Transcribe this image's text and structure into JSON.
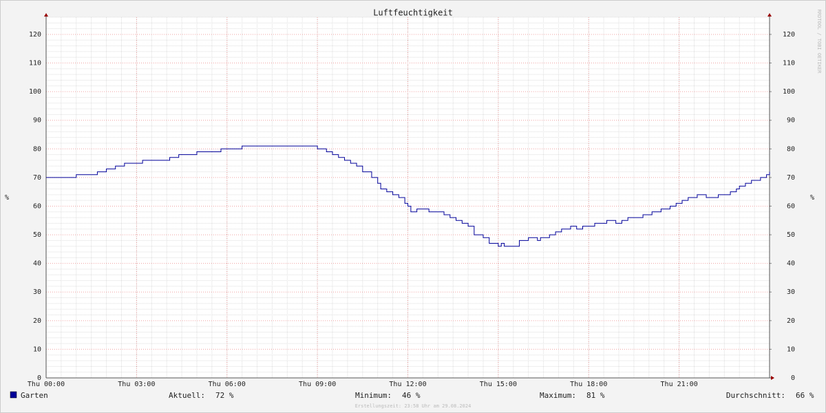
{
  "chart_data": {
    "type": "line",
    "title": "Luftfeuchtigkeit",
    "ylabel": "%",
    "y2label": "%",
    "watermark": "RRDTOOL / TOBI OETIKER",
    "footer": "Erstellungszeit: 23:58 Uhr am 29.08.2024",
    "xlim": [
      0,
      24
    ],
    "xticks": [
      {
        "value": 0,
        "label": "Thu 00:00"
      },
      {
        "value": 3,
        "label": "Thu 03:00"
      },
      {
        "value": 6,
        "label": "Thu 06:00"
      },
      {
        "value": 9,
        "label": "Thu 09:00"
      },
      {
        "value": 12,
        "label": "Thu 12:00"
      },
      {
        "value": 15,
        "label": "Thu 15:00"
      },
      {
        "value": 18,
        "label": "Thu 18:00"
      },
      {
        "value": 21,
        "label": "Thu 21:00"
      }
    ],
    "ylim": [
      0,
      126
    ],
    "yticks": [
      0,
      10,
      20,
      30,
      40,
      50,
      60,
      70,
      80,
      90,
      100,
      110,
      120
    ],
    "y2lim": [
      0,
      126
    ],
    "y2ticks": [
      0,
      10,
      20,
      30,
      40,
      50,
      60,
      70,
      80,
      90,
      100,
      110,
      120
    ],
    "grid": true,
    "step": true,
    "series": [
      {
        "name": "Garten",
        "color": "#000099",
        "x": [
          0,
          1.0,
          1.7,
          2.0,
          2.3,
          2.6,
          3.2,
          4.1,
          4.4,
          5.0,
          5.8,
          6.5,
          9.0,
          9.3,
          9.5,
          9.7,
          9.9,
          10.1,
          10.3,
          10.5,
          10.8,
          11.0,
          11.1,
          11.3,
          11.5,
          11.7,
          11.9,
          12.0,
          12.1,
          12.3,
          12.7,
          13.2,
          13.4,
          13.6,
          13.8,
          14.0,
          14.2,
          14.5,
          14.7,
          15.0,
          15.1,
          15.2,
          15.7,
          16.0,
          16.3,
          16.4,
          16.7,
          16.9,
          17.1,
          17.4,
          17.6,
          17.8,
          18.2,
          18.6,
          18.9,
          19.1,
          19.3,
          19.8,
          20.1,
          20.4,
          20.7,
          20.9,
          21.1,
          21.3,
          21.6,
          21.9,
          22.3,
          22.7,
          22.9,
          23.0,
          23.2,
          23.4,
          23.7,
          23.9,
          24.0
        ],
        "values": [
          70,
          71,
          72,
          73,
          74,
          75,
          76,
          77,
          78,
          79,
          80,
          81,
          80,
          79,
          78,
          77,
          76,
          75,
          74,
          72,
          70,
          68,
          66,
          65,
          64,
          63,
          61,
          60,
          58,
          59,
          58,
          57,
          56,
          55,
          54,
          53,
          50,
          49,
          47,
          46,
          47,
          46,
          48,
          49,
          48,
          49,
          50,
          51,
          52,
          53,
          52,
          53,
          54,
          55,
          54,
          55,
          56,
          57,
          58,
          59,
          60,
          61,
          62,
          63,
          64,
          63,
          64,
          65,
          66,
          67,
          68,
          69,
          70,
          71,
          72
        ]
      }
    ],
    "stats": [
      {
        "name": "Aktuell:",
        "text": "72 %"
      },
      {
        "name": "Minimum:",
        "text": "46 %"
      },
      {
        "name": "Maximum:",
        "text": "81 %"
      },
      {
        "name": "Durchschnitt:",
        "text": "66 %"
      }
    ]
  }
}
